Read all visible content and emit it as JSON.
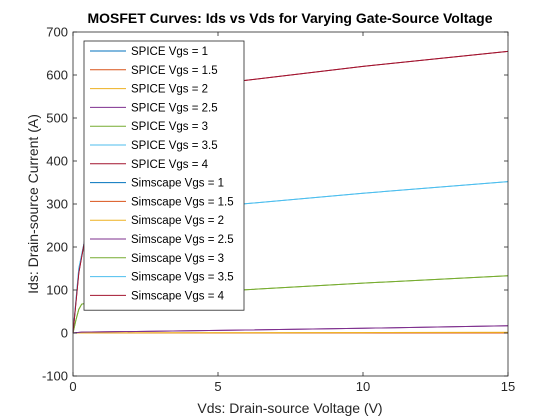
{
  "chart_data": {
    "type": "line",
    "title": "MOSFET Curves: Ids vs Vds for Varying Gate-Source Voltage",
    "xlabel": "Vds: Drain-source Voltage (V)",
    "ylabel": "Ids: Drain-source Current (A)",
    "xlim": [
      0,
      15
    ],
    "ylim": [
      -100,
      700
    ],
    "xticks": [
      "0",
      "5",
      "10",
      "15"
    ],
    "yticks": [
      "-100",
      "0",
      "100",
      "200",
      "300",
      "400",
      "500",
      "600",
      "700"
    ],
    "grid": false,
    "legend_position": "top-left",
    "series": [
      {
        "name": "SPICE Vgs = 1",
        "color": "#0072BD",
        "x": [
          0,
          15
        ],
        "y": [
          0,
          0
        ]
      },
      {
        "name": "SPICE Vgs = 1.5",
        "color": "#D95319",
        "x": [
          0,
          15
        ],
        "y": [
          0,
          0
        ]
      },
      {
        "name": "SPICE Vgs = 2",
        "color": "#EDB120",
        "x": [
          0,
          5,
          10,
          15
        ],
        "y": [
          0,
          0.5,
          1,
          1.5
        ]
      },
      {
        "name": "SPICE Vgs = 2.5",
        "color": "#7E2F8E",
        "x": [
          0,
          0.3,
          5,
          10,
          15
        ],
        "y": [
          0,
          2,
          6,
          11,
          17
        ]
      },
      {
        "name": "SPICE Vgs = 3",
        "color": "#77AC30",
        "x": [
          0,
          0.1,
          0.2,
          0.3,
          0.5,
          1,
          5,
          10,
          15
        ],
        "y": [
          0,
          30,
          55,
          67,
          70,
          72,
          97,
          116,
          133
        ]
      },
      {
        "name": "SPICE Vgs = 3.5",
        "color": "#4DBEEE",
        "x": [
          0,
          0.2,
          0.4,
          1,
          5,
          10,
          15
        ],
        "y": [
          0,
          150,
          215,
          250,
          295,
          325,
          352
        ]
      },
      {
        "name": "SPICE Vgs = 4",
        "color": "#A2142F",
        "x": [
          0,
          0.2,
          0.4,
          1,
          5,
          10,
          15
        ],
        "y": [
          0,
          140,
          215,
          450,
          580,
          620,
          655
        ]
      },
      {
        "name": "Simscape Vgs = 1",
        "color": "#0072BD",
        "x": [
          0,
          15
        ],
        "y": [
          0,
          0
        ]
      },
      {
        "name": "Simscape Vgs = 1.5",
        "color": "#D95319",
        "x": [
          0,
          15
        ],
        "y": [
          0,
          0
        ]
      },
      {
        "name": "Simscape Vgs = 2",
        "color": "#EDB120",
        "x": [
          0,
          5,
          10,
          15
        ],
        "y": [
          0,
          0.5,
          1,
          1.5
        ]
      },
      {
        "name": "Simscape Vgs = 2.5",
        "color": "#7E2F8E",
        "x": [
          0,
          0.3,
          5,
          10,
          15
        ],
        "y": [
          0,
          2,
          6,
          11,
          17
        ]
      },
      {
        "name": "Simscape Vgs = 3",
        "color": "#77AC30",
        "x": [
          0,
          0.1,
          0.2,
          0.3,
          0.5,
          1,
          5,
          10,
          15
        ],
        "y": [
          0,
          30,
          55,
          67,
          70,
          72,
          97,
          116,
          133
        ]
      },
      {
        "name": "Simscape Vgs = 3.5",
        "color": "#4DBEEE",
        "x": [
          0,
          0.2,
          0.4,
          1,
          5,
          10,
          15
        ],
        "y": [
          0,
          150,
          215,
          250,
          295,
          325,
          352
        ]
      },
      {
        "name": "Simscape Vgs = 4",
        "color": "#A2142F",
        "x": [
          0,
          0.2,
          0.4,
          1,
          5,
          10,
          15
        ],
        "y": [
          0,
          140,
          215,
          450,
          580,
          620,
          655
        ]
      }
    ]
  }
}
